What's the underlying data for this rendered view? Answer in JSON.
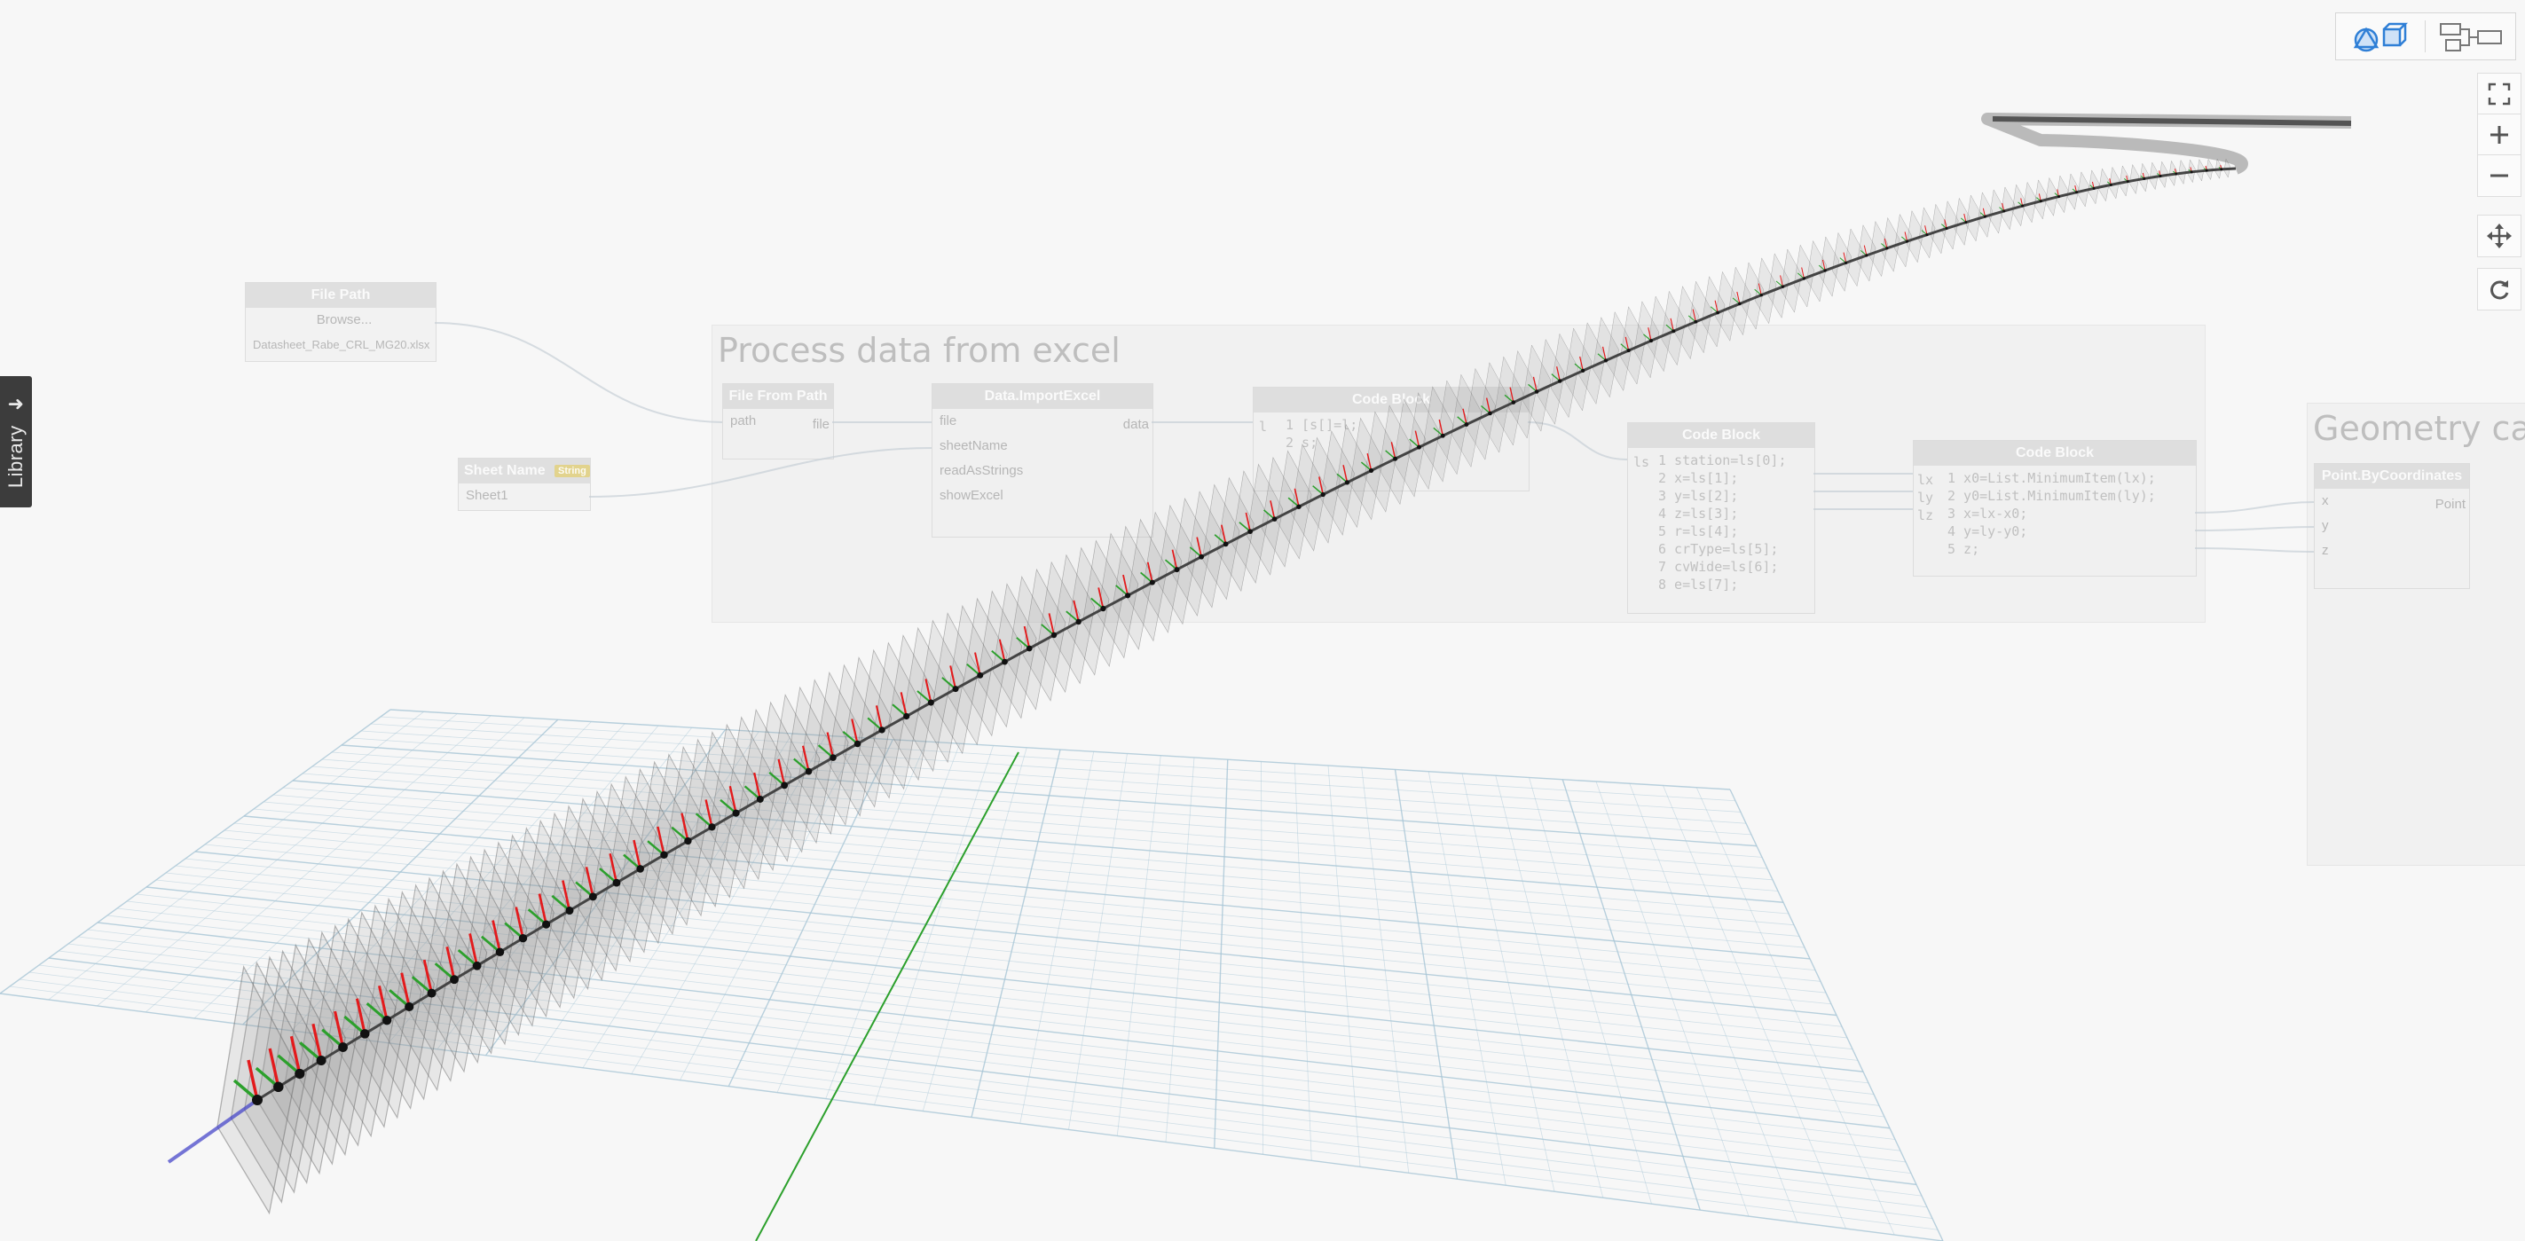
{
  "library": {
    "label": "Library"
  },
  "groups": [
    {
      "title": "Process data from excel"
    },
    {
      "title": "Geometry calc"
    }
  ],
  "nodes": {
    "file_path": {
      "title": "File Path",
      "button": "Browse...",
      "value": "Datasheet_Rabe_CRL_MG20.xlsx"
    },
    "sheet_name": {
      "title": "Sheet Name",
      "badge": "String",
      "value": "Sheet1"
    },
    "file_from_path": {
      "title": "File From Path",
      "input": "path",
      "output": "file"
    },
    "import_excel": {
      "title": "Data.ImportExcel",
      "inputs": [
        "file",
        "sheetName",
        "readAsStrings",
        "showExcel"
      ],
      "output": "data"
    },
    "code_block_1": {
      "title": "Code Block",
      "input": "l",
      "lines": [
        "1 [s[]=l;",
        "2 s;"
      ]
    },
    "code_block_2": {
      "title": "Code Block",
      "input": "ls",
      "lines": [
        "1 station=ls[0];",
        "2 x=ls[1];",
        "3 y=ls[2];",
        "4 z=ls[3];",
        "5 r=ls[4];",
        "6 crType=ls[5];",
        "7 cvWide=ls[6];",
        "8 e=ls[7];"
      ]
    },
    "code_block_3": {
      "title": "Code Block",
      "inputs": [
        "lx",
        "ly",
        "lz"
      ],
      "lines": [
        "1 x0=List.MinimumItem(lx);",
        "2 y0=List.MinimumItem(ly);",
        "3 x=lx-x0;",
        "4 y=ly-y0;",
        "5 z;"
      ]
    },
    "point_by_coords": {
      "title": "Point.ByCoordinates",
      "inputs": [
        "x",
        "y",
        "z"
      ],
      "output": "Point"
    }
  },
  "view_controls": {
    "switch_left_icon": "3d-geometry-icon",
    "switch_right_icon": "graph-nodes-icon",
    "buttons": [
      "zoom-fit-icon",
      "zoom-in-icon",
      "zoom-out-icon",
      "pan-icon",
      "orbit-icon"
    ]
  },
  "colors": {
    "background": "#f7f7f7",
    "grid": "#a8c6d6",
    "x_axis": "#e31a1c",
    "y_axis": "#2ca02c",
    "z_axis": "#3e3ec8",
    "library_bg": "#3c3c3c"
  }
}
